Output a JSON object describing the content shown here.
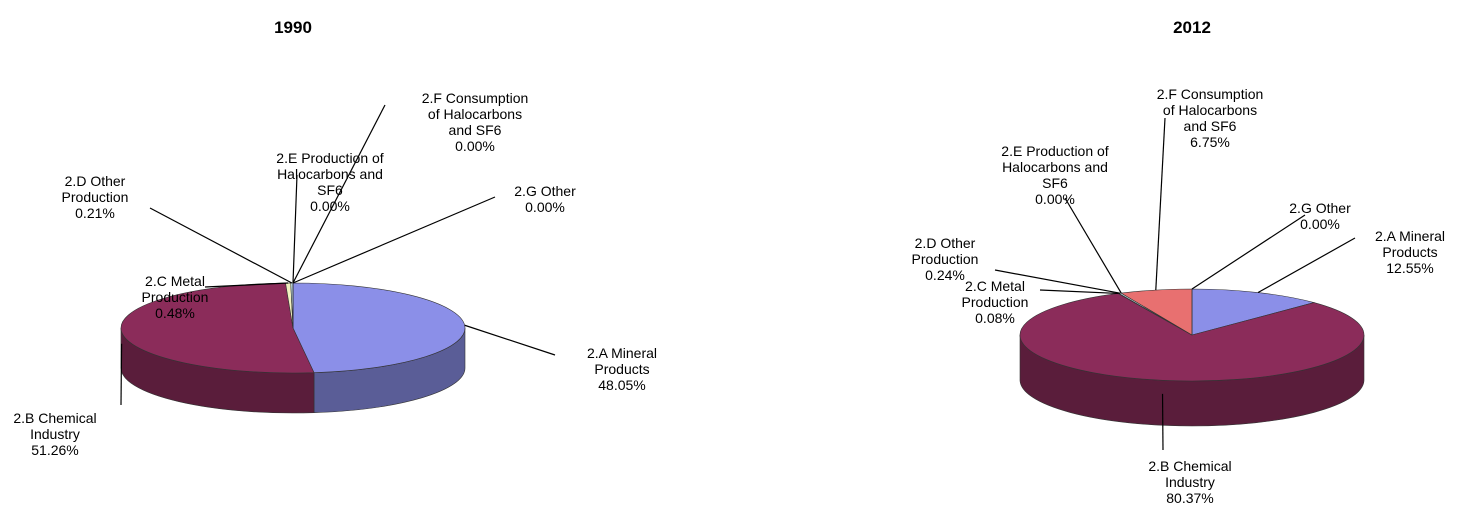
{
  "chart_data": [
    {
      "type": "pie",
      "title": "1990",
      "categories": [
        "2.A Mineral Products",
        "2.B Chemical Industry",
        "2.C Metal Production",
        "2.D Other Production",
        "2.E Production of Halocarbons and SF6",
        "2.F Consumption of Halocarbons and SF6",
        "2.G Other"
      ],
      "values": [
        48.05,
        51.26,
        0.48,
        0.21,
        0.0,
        0.0,
        0.0
      ],
      "value_labels": [
        "48.05%",
        "51.26%",
        "0.48%",
        "0.21%",
        "0.00%",
        "0.00%",
        "0.00%"
      ],
      "colors": [
        "#8b8fe8",
        "#8b2c5a",
        "#f2f0c0",
        "#c8e6f0",
        "#6a3a80",
        "#e87070",
        "#3a6ea8"
      ]
    },
    {
      "type": "pie",
      "title": "2012",
      "categories": [
        "2.A Mineral Products",
        "2.B Chemical Industry",
        "2.C Metal Production",
        "2.D Other Production",
        "2.E Production of Halocarbons and SF6",
        "2.F Consumption of Halocarbons and SF6",
        "2.G Other"
      ],
      "values": [
        12.55,
        80.37,
        0.08,
        0.24,
        0.0,
        6.75,
        0.0
      ],
      "value_labels": [
        "12.55%",
        "80.37%",
        "0.08%",
        "0.24%",
        "0.00%",
        "6.75%",
        "0.00%"
      ],
      "colors": [
        "#8b8fe8",
        "#8b2c5a",
        "#f2f0c0",
        "#c8e6f0",
        "#6a3a80",
        "#e87070",
        "#3a6ea8"
      ]
    }
  ]
}
